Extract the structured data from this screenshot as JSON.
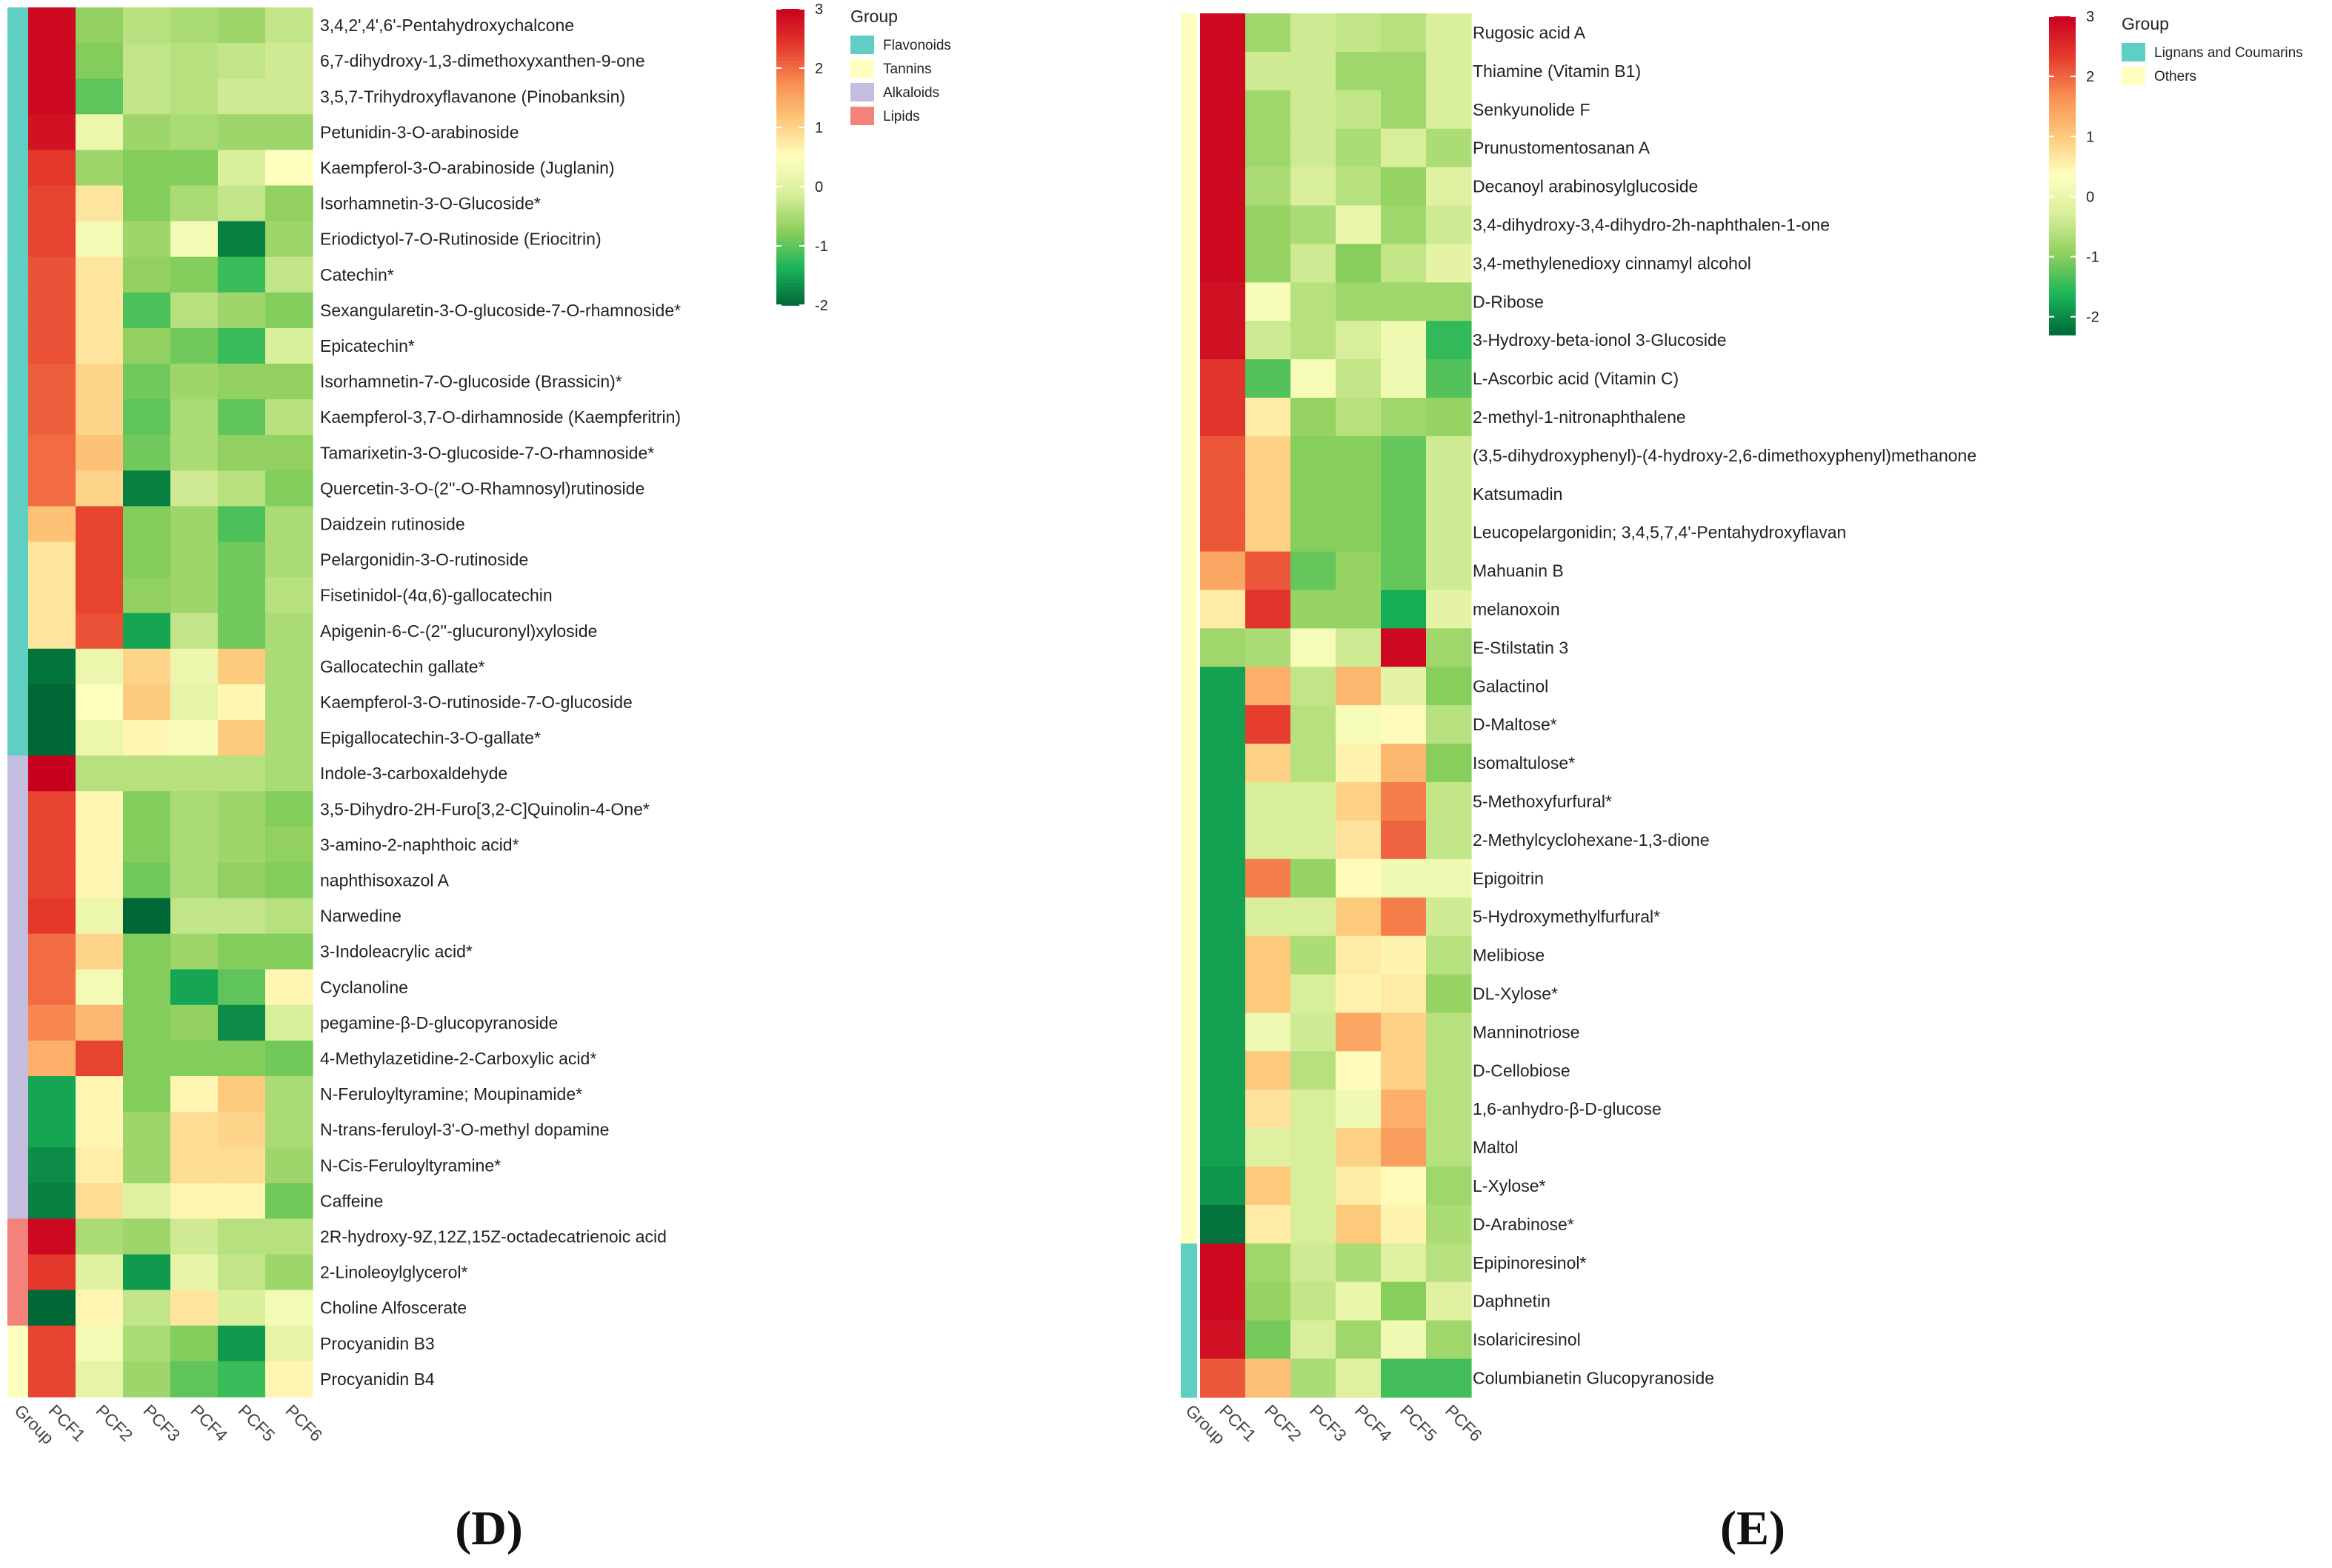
{
  "colors": {
    "scale": [
      "#006837",
      "#1AB45A",
      "#8CCF5C",
      "#D8EE9A",
      "#FFFFBF",
      "#FDC97B",
      "#F98E52",
      "#E4392D",
      "#C8001F"
    ],
    "groups": {
      "Flavonoids": "#5FCFC4",
      "Tannins": "#FFFFC0",
      "Alkaloids": "#C4BDE0",
      "Lipids": "#F3837A",
      "Lignans and Coumarins": "#5FCFC4",
      "Others": "#FFFFC0"
    }
  },
  "chart_data": [
    {
      "type": "heatmap",
      "panel_label": "(D)",
      "columns": [
        "Group",
        "PCF1",
        "PCF2",
        "PCF3",
        "PCF4",
        "PCF5",
        "PCF6"
      ],
      "legend": {
        "title": "Group",
        "entries": [
          "Flavonoids",
          "Tannins",
          "Alkaloids",
          "Lipids"
        ]
      },
      "colorbar": {
        "min": -2,
        "max": 3,
        "ticks": [
          3,
          2,
          1,
          0,
          -1,
          -2
        ]
      },
      "rows": [
        {
          "name": "3,4,2',4',6'-Pentahydroxychalcone",
          "group": "Flavonoids",
          "values": [
            2.9,
            -0.7,
            -0.4,
            -0.5,
            -0.6,
            -0.3
          ]
        },
        {
          "name": "6,7-dihydroxy-1,3-dimethoxyxanthen-9-one",
          "group": "Flavonoids",
          "values": [
            2.9,
            -0.8,
            -0.3,
            -0.4,
            -0.3,
            -0.2
          ]
        },
        {
          "name": "3,5,7-Trihydroxyflavanone (Pinobanksin)",
          "group": "Flavonoids",
          "values": [
            2.9,
            -1.0,
            -0.3,
            -0.4,
            -0.2,
            -0.2
          ]
        },
        {
          "name": "Petunidin-3-O-arabinoside",
          "group": "Flavonoids",
          "values": [
            2.8,
            0.2,
            -0.6,
            -0.5,
            -0.6,
            -0.6
          ]
        },
        {
          "name": "Kaempferol-3-O-arabinoside (Juglanin)",
          "group": "Flavonoids",
          "values": [
            2.4,
            -0.6,
            -0.8,
            -0.8,
            -0.1,
            0.5
          ]
        },
        {
          "name": "Isorhamnetin-3-O-Glucoside*",
          "group": "Flavonoids",
          "values": [
            2.3,
            0.8,
            -0.8,
            -0.5,
            -0.3,
            -0.7
          ]
        },
        {
          "name": "Eriodictyol-7-O-Rutinoside (Eriocitrin)",
          "group": "Flavonoids",
          "values": [
            2.3,
            0.3,
            -0.6,
            0.3,
            -1.8,
            -0.6
          ]
        },
        {
          "name": "Catechin*",
          "group": "Flavonoids",
          "values": [
            2.2,
            0.8,
            -0.7,
            -0.8,
            -1.2,
            -0.3
          ]
        },
        {
          "name": "Sexangularetin-3-O-glucoside-7-O-rhamnoside*",
          "group": "Flavonoids",
          "values": [
            2.2,
            0.8,
            -1.1,
            -0.4,
            -0.6,
            -0.8
          ]
        },
        {
          "name": "Epicatechin*",
          "group": "Flavonoids",
          "values": [
            2.2,
            0.8,
            -0.7,
            -0.9,
            -1.2,
            -0.1
          ]
        },
        {
          "name": "Isorhamnetin-7-O-glucoside (Brassicin)*",
          "group": "Flavonoids",
          "values": [
            2.1,
            1.0,
            -0.9,
            -0.6,
            -0.7,
            -0.7
          ]
        },
        {
          "name": "Kaempferol-3,7-O-dirhamnoside (Kaempferitrin)",
          "group": "Flavonoids",
          "values": [
            2.1,
            1.0,
            -1.0,
            -0.5,
            -1.0,
            -0.4
          ]
        },
        {
          "name": "Tamarixetin-3-O-glucoside-7-O-rhamnoside*",
          "group": "Flavonoids",
          "values": [
            2.0,
            1.2,
            -0.9,
            -0.5,
            -0.7,
            -0.7
          ]
        },
        {
          "name": "Quercetin-3-O-(2''-O-Rhamnosyl)rutinoside",
          "group": "Flavonoids",
          "values": [
            2.0,
            1.0,
            -1.8,
            -0.2,
            -0.4,
            -0.8
          ]
        },
        {
          "name": "Daidzein rutinoside",
          "group": "Flavonoids",
          "values": [
            1.2,
            2.3,
            -0.8,
            -0.6,
            -1.1,
            -0.5
          ]
        },
        {
          "name": "Pelargonidin-3-O-rutinoside",
          "group": "Flavonoids",
          "values": [
            0.8,
            2.3,
            -0.8,
            -0.6,
            -0.9,
            -0.5
          ]
        },
        {
          "name": "Fisetinidol-(4α,6)-gallocatechin",
          "group": "Flavonoids",
          "values": [
            0.8,
            2.3,
            -0.7,
            -0.6,
            -0.9,
            -0.4
          ]
        },
        {
          "name": "Apigenin-6-C-(2''-glucuronyl)xyloside",
          "group": "Flavonoids",
          "values": [
            0.8,
            2.2,
            -1.5,
            -0.3,
            -0.9,
            -0.5
          ]
        },
        {
          "name": "Gallocatechin gallate*",
          "group": "Flavonoids",
          "values": [
            -1.9,
            0.2,
            1.0,
            0.2,
            1.1,
            -0.5
          ]
        },
        {
          "name": "Kaempferol-3-O-rutinoside-7-O-glucoside",
          "group": "Flavonoids",
          "values": [
            -2.0,
            0.5,
            1.1,
            0.1,
            0.6,
            -0.5
          ]
        },
        {
          "name": "Epigallocatechin-3-O-gallate*",
          "group": "Flavonoids",
          "values": [
            -2.0,
            0.2,
            0.6,
            0.4,
            1.1,
            -0.5
          ]
        },
        {
          "name": "Indole-3-carboxaldehyde",
          "group": "Alkaloids",
          "values": [
            3.0,
            -0.4,
            -0.4,
            -0.4,
            -0.4,
            -0.5
          ]
        },
        {
          "name": "3,5-Dihydro-2H-Furo[3,2-C]Quinolin-4-One*",
          "group": "Alkaloids",
          "values": [
            2.3,
            0.6,
            -0.8,
            -0.5,
            -0.6,
            -0.8
          ]
        },
        {
          "name": "3-amino-2-naphthoic acid*",
          "group": "Alkaloids",
          "values": [
            2.3,
            0.6,
            -0.8,
            -0.5,
            -0.6,
            -0.7
          ]
        },
        {
          "name": "naphthisoxazol A",
          "group": "Alkaloids",
          "values": [
            2.3,
            0.6,
            -0.9,
            -0.5,
            -0.7,
            -0.8
          ]
        },
        {
          "name": "Narwedine",
          "group": "Alkaloids",
          "values": [
            2.4,
            0.2,
            -2.0,
            -0.3,
            -0.3,
            -0.4
          ]
        },
        {
          "name": "3-Indoleacrylic acid*",
          "group": "Alkaloids",
          "values": [
            2.0,
            1.0,
            -0.8,
            -0.6,
            -0.8,
            -0.8
          ]
        },
        {
          "name": "Cyclanoline",
          "group": "Alkaloids",
          "values": [
            2.0,
            0.3,
            -0.8,
            -1.5,
            -1.0,
            0.6
          ]
        },
        {
          "name": "pegamine-β-D-glucopyranoside",
          "group": "Alkaloids",
          "values": [
            1.8,
            1.3,
            -0.8,
            -0.7,
            -1.7,
            -0.1
          ]
        },
        {
          "name": "4-Methylazetidine-2-Carboxylic acid*",
          "group": "Alkaloids",
          "values": [
            1.4,
            2.3,
            -0.8,
            -0.8,
            -0.8,
            -0.9
          ]
        },
        {
          "name": "N-Feruloyltyramine; Moupinamide*",
          "group": "Alkaloids",
          "values": [
            -1.5,
            0.6,
            -0.8,
            0.6,
            1.1,
            -0.5
          ]
        },
        {
          "name": "N-trans-feruloyl-3'-O-methyl dopamine",
          "group": "Alkaloids",
          "values": [
            -1.5,
            0.6,
            -0.6,
            0.9,
            1.0,
            -0.5
          ]
        },
        {
          "name": "N-Cis-Feruloyltyramine*",
          "group": "Alkaloids",
          "values": [
            -1.7,
            0.7,
            -0.6,
            0.9,
            0.9,
            -0.6
          ]
        },
        {
          "name": "Caffeine",
          "group": "Alkaloids",
          "values": [
            -1.8,
            0.9,
            0.0,
            0.6,
            0.6,
            -0.9
          ]
        },
        {
          "name": "2R-hydroxy-9Z,12Z,15Z-octadecatrienoic acid",
          "group": "Lipids",
          "values": [
            2.9,
            -0.5,
            -0.6,
            -0.2,
            -0.4,
            -0.4
          ]
        },
        {
          "name": "2-Linoleoylglycerol*",
          "group": "Lipids",
          "values": [
            2.4,
            0.0,
            -1.6,
            0.1,
            -0.3,
            -0.6
          ]
        },
        {
          "name": "Choline Alfoscerate",
          "group": "Lipids",
          "values": [
            -2.2,
            0.6,
            -0.3,
            0.8,
            -0.1,
            0.3
          ]
        },
        {
          "name": "Procyanidin B3",
          "group": "Tannins",
          "values": [
            2.3,
            0.3,
            -0.5,
            -0.8,
            -1.6,
            0.1
          ]
        },
        {
          "name": "Procyanidin B4",
          "group": "Tannins",
          "values": [
            2.3,
            0.1,
            -0.6,
            -1.0,
            -1.2,
            0.6
          ]
        }
      ]
    },
    {
      "type": "heatmap",
      "panel_label": "(E)",
      "columns": [
        "Group",
        "PCF1",
        "PCF2",
        "PCF3",
        "PCF4",
        "PCF5",
        "PCF6"
      ],
      "legend": {
        "title": "Group",
        "entries": [
          "Lignans and Coumarins",
          "Others"
        ]
      },
      "colorbar": {
        "min": -2.3,
        "max": 3,
        "ticks": [
          3,
          2,
          1,
          0,
          -1,
          -2
        ]
      },
      "rows": [
        {
          "name": "Rugosic acid A",
          "group": "Others",
          "values": [
            2.9,
            -0.8,
            -0.4,
            -0.5,
            -0.6,
            -0.3
          ]
        },
        {
          "name": "Thiamine (Vitamin B1)",
          "group": "Others",
          "values": [
            2.9,
            -0.4,
            -0.4,
            -0.8,
            -0.8,
            -0.3
          ]
        },
        {
          "name": "Senkyunolide F",
          "group": "Others",
          "values": [
            2.9,
            -0.8,
            -0.4,
            -0.5,
            -0.8,
            -0.3
          ]
        },
        {
          "name": "Prunustomentosanan A",
          "group": "Others",
          "values": [
            2.9,
            -0.8,
            -0.4,
            -0.7,
            -0.3,
            -0.7
          ]
        },
        {
          "name": "Decanoyl arabinosylglucoside",
          "group": "Others",
          "values": [
            2.9,
            -0.7,
            -0.3,
            -0.6,
            -0.9,
            -0.2
          ]
        },
        {
          "name": "3,4-dihydroxy-3,4-dihydro-2h-naphthalen-1-one",
          "group": "Others",
          "values": [
            2.9,
            -0.9,
            -0.7,
            0.0,
            -0.8,
            -0.4
          ]
        },
        {
          "name": "3,4-methylenedioxy cinnamyl alcohol",
          "group": "Others",
          "values": [
            2.9,
            -0.9,
            -0.4,
            -1.0,
            -0.5,
            -0.1
          ]
        },
        {
          "name": "D-Ribose",
          "group": "Others",
          "values": [
            2.8,
            0.2,
            -0.6,
            -0.8,
            -0.8,
            -0.8
          ]
        },
        {
          "name": "3-Hydroxy-beta-ionol 3-Glucoside",
          "group": "Others",
          "values": [
            2.8,
            -0.4,
            -0.6,
            -0.3,
            0.1,
            -1.5
          ]
        },
        {
          "name": "L-Ascorbic acid (Vitamin C)",
          "group": "Others",
          "values": [
            2.4,
            -1.3,
            0.2,
            -0.5,
            0.1,
            -1.3
          ]
        },
        {
          "name": "2-methyl-1-nitronaphthalene",
          "group": "Others",
          "values": [
            2.4,
            0.6,
            -0.9,
            -0.6,
            -0.8,
            -0.9
          ]
        },
        {
          "name": "(3,5-dihydroxyphenyl)-(4-hydroxy-2,6-dimethoxyphenyl)methanone",
          "group": "Others",
          "values": [
            2.1,
            0.9,
            -1.0,
            -1.0,
            -1.2,
            -0.4
          ]
        },
        {
          "name": "Katsumadin",
          "group": "Others",
          "values": [
            2.1,
            0.9,
            -1.0,
            -1.0,
            -1.2,
            -0.4
          ]
        },
        {
          "name": "Leucopelargonidin; 3,4,5,7,4'-Pentahydroxyflavan",
          "group": "Others",
          "values": [
            2.1,
            0.9,
            -1.0,
            -1.0,
            -1.2,
            -0.4
          ]
        },
        {
          "name": "Mahuanin B",
          "group": "Others",
          "values": [
            1.4,
            2.1,
            -1.2,
            -0.9,
            -1.2,
            -0.4
          ]
        },
        {
          "name": "melanoxoin",
          "group": "Others",
          "values": [
            0.6,
            2.4,
            -0.9,
            -0.9,
            -1.7,
            -0.1
          ]
        },
        {
          "name": "E-Stilstatin 3",
          "group": "Others",
          "values": [
            -0.8,
            -0.7,
            0.2,
            -0.4,
            2.9,
            -0.8
          ]
        },
        {
          "name": "Galactinol",
          "group": "Others",
          "values": [
            -1.8,
            1.3,
            -0.5,
            1.2,
            -0.1,
            -1.0
          ]
        },
        {
          "name": "D-Maltose*",
          "group": "Others",
          "values": [
            -1.8,
            2.3,
            -0.6,
            0.2,
            0.4,
            -0.6
          ]
        },
        {
          "name": "Isomaltulose*",
          "group": "Others",
          "values": [
            -1.8,
            0.9,
            -0.6,
            0.5,
            1.2,
            -1.0
          ]
        },
        {
          "name": "5-Methoxyfurfural*",
          "group": "Others",
          "values": [
            -1.8,
            -0.3,
            -0.3,
            0.9,
            1.8,
            -0.5
          ]
        },
        {
          "name": "2-Methylcyclohexane-1,3-dione",
          "group": "Others",
          "values": [
            -1.8,
            -0.3,
            -0.3,
            0.7,
            2.0,
            -0.5
          ]
        },
        {
          "name": "Epigoitrin",
          "group": "Others",
          "values": [
            -1.8,
            1.8,
            -0.9,
            0.4,
            0.1,
            0.1
          ]
        },
        {
          "name": "5-Hydroxymethylfurfural*",
          "group": "Others",
          "values": [
            -1.8,
            -0.3,
            -0.3,
            1.0,
            1.8,
            -0.4
          ]
        },
        {
          "name": "Melibiose",
          "group": "Others",
          "values": [
            -1.8,
            1.0,
            -0.7,
            0.6,
            0.5,
            -0.6
          ]
        },
        {
          "name": "DL-Xylose*",
          "group": "Others",
          "values": [
            -1.8,
            1.0,
            -0.3,
            0.5,
            0.6,
            -0.9
          ]
        },
        {
          "name": "Manninotriose",
          "group": "Others",
          "values": [
            -1.8,
            0.1,
            -0.4,
            1.4,
            0.9,
            -0.6
          ]
        },
        {
          "name": "D-Cellobiose",
          "group": "Others",
          "values": [
            -1.8,
            1.0,
            -0.6,
            0.4,
            0.9,
            -0.6
          ]
        },
        {
          "name": "1,6-anhydro-β-D-glucose",
          "group": "Others",
          "values": [
            -1.8,
            0.7,
            -0.3,
            0.1,
            1.3,
            -0.6
          ]
        },
        {
          "name": "Maltol",
          "group": "Others",
          "values": [
            -1.8,
            -0.2,
            -0.3,
            0.9,
            1.5,
            -0.6
          ]
        },
        {
          "name": "L-Xylose*",
          "group": "Others",
          "values": [
            -1.9,
            1.0,
            -0.3,
            0.6,
            0.4,
            -0.8
          ]
        },
        {
          "name": "D-Arabinose*",
          "group": "Others",
          "values": [
            -2.2,
            0.6,
            -0.3,
            1.0,
            0.5,
            -0.7
          ]
        },
        {
          "name": "Epipinoresinol*",
          "group": "Lignans and Coumarins",
          "values": [
            2.9,
            -0.8,
            -0.4,
            -0.7,
            -0.2,
            -0.6
          ]
        },
        {
          "name": "Daphnetin",
          "group": "Lignans and Coumarins",
          "values": [
            2.9,
            -0.9,
            -0.5,
            0.0,
            -1.0,
            -0.2
          ]
        },
        {
          "name": "Isolariciresinol",
          "group": "Lignans and Coumarins",
          "values": [
            2.8,
            -1.1,
            -0.3,
            -0.8,
            0.1,
            -0.8
          ]
        },
        {
          "name": "Columbianetin Glucopyranoside",
          "group": "Lignans and Coumarins",
          "values": [
            2.1,
            1.1,
            -0.7,
            -0.2,
            -1.4,
            -1.4
          ]
        }
      ]
    }
  ]
}
